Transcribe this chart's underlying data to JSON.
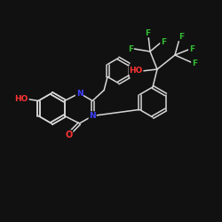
{
  "background_color": "#111111",
  "bond_color": "#d8d8d8",
  "atom_colors": {
    "N": "#4040ff",
    "O": "#ff3333",
    "F": "#33bb33",
    "C": "#d8d8d8"
  },
  "figsize": [
    2.5,
    2.5
  ],
  "dpi": 100,
  "bond_lw": 1.1,
  "font_size": 6.0
}
